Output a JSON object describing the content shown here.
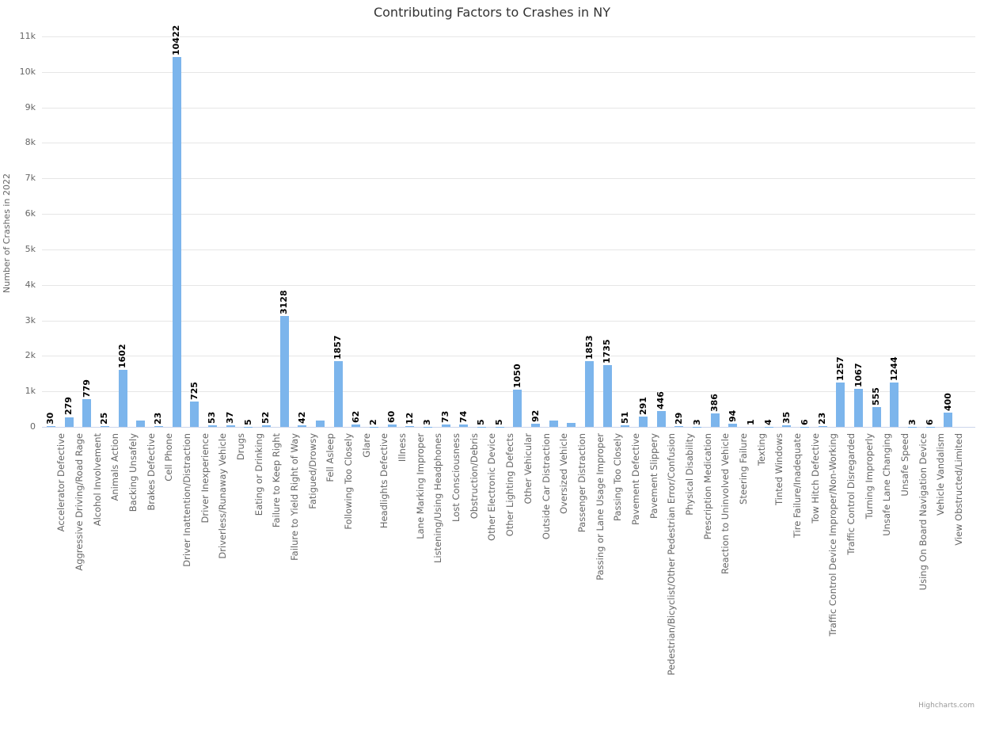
{
  "chart_data": {
    "type": "bar",
    "title": "Contributing Factors to Crashes in NY",
    "xlabel": "",
    "ylabel": "Number of Crashes in 2022",
    "ylim": [
      0,
      11000
    ],
    "yticks": [
      "0",
      "1k",
      "2k",
      "3k",
      "4k",
      "5k",
      "6k",
      "7k",
      "8k",
      "9k",
      "10k",
      "11k"
    ],
    "grid": true,
    "legend": "none",
    "bar_color": "#7cb5ec",
    "categories": [
      "Accelerator Defective",
      "Aggressive Driving/Road Rage",
      "Alcohol Involvement",
      "Animals Action",
      "Backing Unsafely",
      "Brakes Defective",
      "Cell Phone",
      "Driver Inattention/Distraction",
      "Driver Inexperience",
      "Driverless/Runaway Vehicle",
      "Drugs",
      "Eating or Drinking",
      "Failure to Keep Right",
      "Failure to Yield Right of Way",
      "Fatigued/Drowsy",
      "Fell Asleep",
      "Following Too Closely",
      "Glare",
      "Headlights Defective",
      "Illness",
      "Lane Marking Improper",
      "Listening/Using Headphones",
      "Lost Consciousness",
      "Obstruction/Debris",
      "Other Electronic Device",
      "Other Lighting Defects",
      "Other Vehicular",
      "Outside Car Distraction",
      "Oversized Vehicle",
      "Passenger Distraction",
      "Passing or Lane Usage Improper",
      "Passing Too Closely",
      "Pavement Defective",
      "Pavement Slippery",
      "Pedestrian/Bicyclist/Other Pedestrian Error/Confusion",
      "Physical Disability",
      "Prescription Medication",
      "Reaction to Uninvolved Vehicle",
      "Steering Failure",
      "Texting",
      "Tinted Windows",
      "Tire Failure/Inadequate",
      "Tow Hitch Defective",
      "Traffic Control Device Improper/Non-Working",
      "Traffic Control Disregarded",
      "Turning Improperly",
      "Unsafe Lane Changing",
      "Unsafe Speed",
      "Using On Board Navigation Device",
      "Vehicle Vandalism",
      "View Obstructed/Limited"
    ],
    "values": [
      30,
      279,
      779,
      25,
      1602,
      180,
      23,
      10422,
      725,
      53,
      37,
      5,
      52,
      3128,
      42,
      190,
      1857,
      62,
      2,
      60,
      12,
      3,
      73,
      74,
      5,
      5,
      1050,
      92,
      170,
      115,
      1853,
      1735,
      51,
      291,
      446,
      29,
      3,
      386,
      94,
      1,
      4,
      35,
      6,
      23,
      1257,
      1067,
      555,
      1244,
      3,
      6,
      400
    ],
    "data_labels": [
      "30",
      "279",
      "779",
      "25",
      "1602",
      "",
      "23",
      "10422",
      "725",
      "53",
      "37",
      "5",
      "52",
      "3128",
      "42",
      "",
      "1857",
      "62",
      "2",
      "60",
      "12",
      "3",
      "73",
      "74",
      "5",
      "5",
      "1050",
      "92",
      "",
      "",
      "1853",
      "1735",
      "51",
      "291",
      "446",
      "29",
      "3",
      "386",
      "94",
      "1",
      "4",
      "35",
      "6",
      "23",
      "1257",
      "1067",
      "555",
      "1244",
      "3",
      "6",
      "400"
    ],
    "credit": "Highcharts.com"
  }
}
